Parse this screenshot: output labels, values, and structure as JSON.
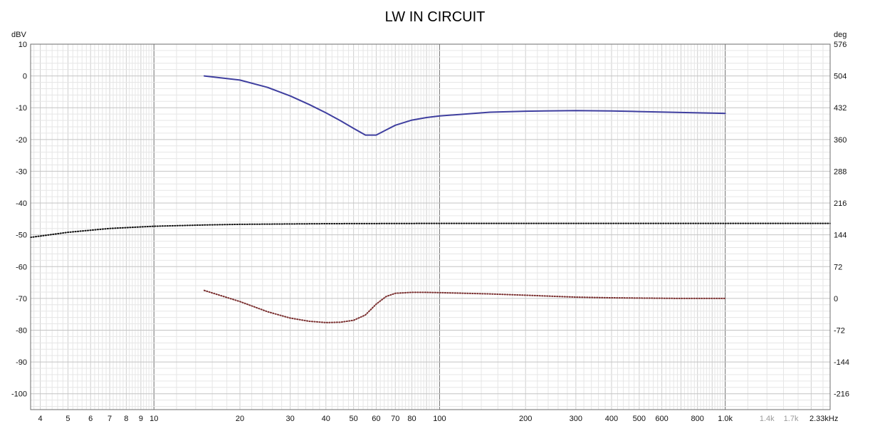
{
  "chart_data": {
    "type": "line",
    "title": "LW IN CIRCUIT",
    "x_scale": "log",
    "xlim": [
      3.7,
      2330
    ],
    "y_left": {
      "unit": "dBV",
      "lim": [
        -105,
        10
      ],
      "ticks": [
        10,
        0,
        -10,
        -20,
        -30,
        -40,
        -50,
        -60,
        -70,
        -80,
        -90,
        -100
      ]
    },
    "y_right": {
      "unit": "deg",
      "lim": [
        -252,
        576
      ],
      "ticks": [
        576,
        504,
        432,
        360,
        288,
        216,
        144,
        72,
        0,
        -72,
        -144,
        -216
      ]
    },
    "x_ticks": [
      {
        "value": 4,
        "label": "4",
        "dim": false
      },
      {
        "value": 5,
        "label": "5",
        "dim": false
      },
      {
        "value": 6,
        "label": "6",
        "dim": false
      },
      {
        "value": 7,
        "label": "7",
        "dim": false
      },
      {
        "value": 8,
        "label": "8",
        "dim": false
      },
      {
        "value": 9,
        "label": "9",
        "dim": false
      },
      {
        "value": 10,
        "label": "10",
        "dim": false
      },
      {
        "value": 20,
        "label": "20",
        "dim": false
      },
      {
        "value": 30,
        "label": "30",
        "dim": false
      },
      {
        "value": 40,
        "label": "40",
        "dim": false
      },
      {
        "value": 50,
        "label": "50",
        "dim": false
      },
      {
        "value": 60,
        "label": "60",
        "dim": false
      },
      {
        "value": 70,
        "label": "70",
        "dim": false
      },
      {
        "value": 80,
        "label": "80",
        "dim": false
      },
      {
        "value": 100,
        "label": "100",
        "dim": false
      },
      {
        "value": 200,
        "label": "200",
        "dim": false
      },
      {
        "value": 300,
        "label": "300",
        "dim": false
      },
      {
        "value": 400,
        "label": "400",
        "dim": false
      },
      {
        "value": 500,
        "label": "500",
        "dim": false
      },
      {
        "value": 600,
        "label": "600",
        "dim": false
      },
      {
        "value": 800,
        "label": "800",
        "dim": false
      },
      {
        "value": 1000,
        "label": "1.0k",
        "dim": false
      },
      {
        "value": 1400,
        "label": "1.4k",
        "dim": true
      },
      {
        "value": 1700,
        "label": "1.7k",
        "dim": true
      },
      {
        "value": 2330,
        "label": "2.33kHz",
        "dim": false
      }
    ],
    "series": [
      {
        "axis": "left",
        "style": "solid",
        "color": "#3f3f9f",
        "x": [
          15,
          20,
          25,
          30,
          35,
          40,
          45,
          50,
          55,
          60,
          65,
          70,
          80,
          90,
          100,
          150,
          200,
          300,
          400,
          500,
          700,
          1000
        ],
        "y": [
          0,
          -1.3,
          -3.6,
          -6.3,
          -9.0,
          -11.6,
          -14.1,
          -16.5,
          -18.6,
          -18.6,
          -17.0,
          -15.5,
          -13.9,
          -13.1,
          -12.6,
          -11.4,
          -11.1,
          -10.9,
          -11.0,
          -11.2,
          -11.5,
          -11.8
        ]
      },
      {
        "axis": "left",
        "style": "dotted",
        "color": "#111111",
        "x": [
          3.7,
          5,
          7,
          10,
          15,
          20,
          40,
          100,
          300,
          1000,
          2330
        ],
        "y": [
          -50.8,
          -49.2,
          -48.0,
          -47.3,
          -46.9,
          -46.7,
          -46.5,
          -46.4,
          -46.4,
          -46.4,
          -46.4
        ]
      },
      {
        "axis": "left",
        "style": "dotted",
        "color": "#7a2f2f",
        "x": [
          15,
          20,
          25,
          30,
          35,
          40,
          45,
          50,
          55,
          60,
          65,
          70,
          80,
          90,
          100,
          150,
          200,
          300,
          400,
          500,
          700,
          1000
        ],
        "y": [
          -67.5,
          -71.0,
          -74.2,
          -76.2,
          -77.2,
          -77.6,
          -77.5,
          -76.9,
          -75.2,
          -71.8,
          -69.4,
          -68.4,
          -68.1,
          -68.1,
          -68.2,
          -68.6,
          -69.0,
          -69.6,
          -69.8,
          -69.9,
          -70.0,
          -70.0
        ]
      }
    ]
  }
}
